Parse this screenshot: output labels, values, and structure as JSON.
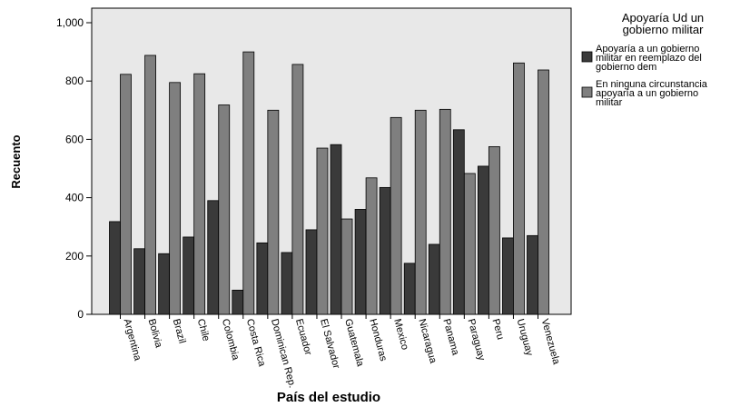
{
  "chart_data": {
    "type": "bar",
    "xlabel": "País del estudio",
    "ylabel": "Recuento",
    "ylim": [
      0,
      1000
    ],
    "yticks": [
      "0",
      "200",
      "400",
      "600",
      "800",
      "1,000"
    ],
    "grid": false,
    "legend_placement": "right",
    "legend_title_lines": [
      "Apoyaría Ud un",
      "gobierno militar"
    ],
    "categories": [
      "Argentina",
      "Bolivia",
      "Brazil",
      "Chile",
      "Colombia",
      "Costa Rica",
      "Dominican Rep.",
      "Ecuador",
      "El Salvador",
      "Guatemala",
      "Honduras",
      "Mexico",
      "Nicaragua",
      "Panama",
      "Paraguay",
      "Peru",
      "Uruguay",
      "Venezuela"
    ],
    "series": [
      {
        "name": "Apoyaría a un gobierno militar en reemplazo del gobierno dem",
        "name_lines": [
          "Apoyaría a un gobierno",
          "militar en reemplazo del",
          "gobierno dem"
        ],
        "color": "#3a3a3a",
        "values": [
          318,
          225,
          208,
          265,
          390,
          83,
          245,
          212,
          290,
          582,
          360,
          435,
          175,
          240,
          633,
          508,
          262,
          270
        ]
      },
      {
        "name": "En ninguna circunstancia apoyaría a un gobierno militar",
        "name_lines": [
          "En ninguna circunstancia",
          "apoyaría a un gobierno",
          "militar"
        ],
        "color": "#7f7f7f",
        "values": [
          823,
          888,
          795,
          825,
          718,
          900,
          700,
          857,
          570,
          327,
          468,
          675,
          700,
          703,
          483,
          575,
          862,
          838
        ]
      }
    ]
  }
}
